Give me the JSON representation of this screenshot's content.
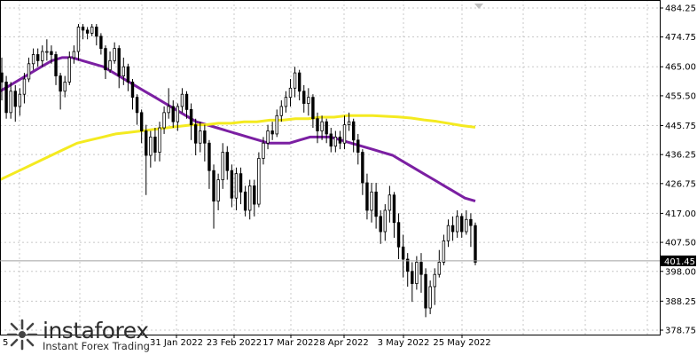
{
  "chart_data": {
    "type": "candlestick",
    "x_tick_labels": [
      "31 Jan 2022",
      "23 Feb 2022",
      "17 Mar 2022",
      "8 Apr 2022",
      "3 May 2022",
      "25 May 2022"
    ],
    "x_tick_label_partial_left": "5",
    "y_tick_labels": [
      "484.25",
      "474.75",
      "465.00",
      "455.50",
      "445.75",
      "436.25",
      "426.75",
      "417.00",
      "407.50",
      "398.00",
      "388.25",
      "378.75"
    ],
    "ylim": [
      378.75,
      484.25
    ],
    "current_price": 401.45,
    "current_price_label": "401.45",
    "candles": [
      [
        463,
        460,
        468,
        454
      ],
      [
        460,
        450,
        462,
        448
      ],
      [
        450,
        457,
        460,
        448
      ],
      [
        457,
        452,
        459,
        447
      ],
      [
        452,
        456,
        458,
        449
      ],
      [
        456,
        461,
        463,
        453
      ],
      [
        461,
        466,
        468,
        460
      ],
      [
        466,
        469,
        471,
        464
      ],
      [
        469,
        467,
        471,
        465
      ],
      [
        467,
        470,
        472,
        465
      ],
      [
        470,
        470,
        474,
        467
      ],
      [
        470,
        469,
        472,
        466
      ],
      [
        469,
        462,
        470,
        459
      ],
      [
        462,
        457,
        463,
        451
      ],
      [
        457,
        460,
        462,
        455
      ],
      [
        460,
        468,
        470,
        459
      ],
      [
        468,
        470,
        472,
        466
      ],
      [
        470,
        478,
        479,
        467
      ],
      [
        478,
        477,
        479,
        474
      ],
      [
        477,
        476,
        478,
        474
      ],
      [
        476,
        478,
        479,
        475
      ],
      [
        478,
        475,
        479,
        472
      ],
      [
        475,
        471,
        476,
        469
      ],
      [
        471,
        464,
        472,
        461
      ],
      [
        464,
        467,
        470,
        463
      ],
      [
        467,
        471,
        473,
        466
      ],
      [
        471,
        462,
        472,
        458
      ],
      [
        462,
        465,
        468,
        459
      ],
      [
        465,
        460,
        466,
        457
      ],
      [
        460,
        455,
        461,
        451
      ],
      [
        455,
        450,
        456,
        446
      ],
      [
        450,
        444,
        451,
        440
      ],
      [
        444,
        436,
        446,
        423
      ],
      [
        436,
        442,
        444,
        432
      ],
      [
        442,
        437,
        445,
        434
      ],
      [
        437,
        445,
        447,
        434
      ],
      [
        445,
        450,
        452,
        443
      ],
      [
        450,
        452,
        458,
        448
      ],
      [
        452,
        447,
        454,
        445
      ],
      [
        447,
        452,
        453,
        444
      ],
      [
        452,
        456,
        458,
        450
      ],
      [
        456,
        451,
        457,
        448
      ],
      [
        451,
        446,
        453,
        441
      ],
      [
        446,
        440,
        448,
        436
      ],
      [
        440,
        444,
        447,
        437
      ],
      [
        444,
        440,
        446,
        434
      ],
      [
        440,
        431,
        441,
        425
      ],
      [
        431,
        421,
        433,
        412
      ],
      [
        421,
        428,
        430,
        418
      ],
      [
        428,
        437,
        440,
        425
      ],
      [
        437,
        431,
        439,
        428
      ],
      [
        431,
        422,
        433,
        419
      ],
      [
        422,
        430,
        432,
        418
      ],
      [
        430,
        424,
        432,
        420
      ],
      [
        424,
        418,
        426,
        416
      ],
      [
        418,
        426,
        428,
        415
      ],
      [
        426,
        420,
        428,
        416
      ],
      [
        420,
        435,
        437,
        419
      ],
      [
        435,
        440,
        442,
        433
      ],
      [
        440,
        444,
        446,
        438
      ],
      [
        444,
        443,
        447,
        441
      ],
      [
        443,
        449,
        451,
        442
      ],
      [
        449,
        452,
        454,
        447
      ],
      [
        452,
        455,
        457,
        450
      ],
      [
        455,
        458,
        461,
        452
      ],
      [
        458,
        463,
        465,
        455
      ],
      [
        463,
        457,
        464,
        454
      ],
      [
        457,
        453,
        459,
        450
      ],
      [
        453,
        455,
        458,
        449
      ],
      [
        455,
        448,
        456,
        445
      ],
      [
        448,
        444,
        450,
        440
      ],
      [
        444,
        447,
        449,
        441
      ],
      [
        447,
        443,
        448,
        440
      ],
      [
        443,
        439,
        445,
        437
      ],
      [
        439,
        442,
        444,
        437
      ],
      [
        442,
        440,
        444,
        438
      ],
      [
        440,
        446,
        449,
        438
      ],
      [
        446,
        447,
        450,
        444
      ],
      [
        447,
        441,
        448,
        437
      ],
      [
        441,
        437,
        443,
        433
      ],
      [
        437,
        427,
        438,
        423
      ],
      [
        427,
        418,
        430,
        415
      ],
      [
        418,
        424,
        427,
        414
      ],
      [
        424,
        416,
        427,
        412
      ],
      [
        416,
        411,
        418,
        407
      ],
      [
        411,
        418,
        420,
        408
      ],
      [
        418,
        423,
        426,
        414
      ],
      [
        423,
        414,
        424,
        409
      ],
      [
        414,
        406,
        417,
        402
      ],
      [
        406,
        402,
        410,
        396
      ],
      [
        402,
        398,
        404,
        393
      ],
      [
        398,
        394,
        401,
        388
      ],
      [
        394,
        401,
        403,
        392
      ],
      [
        401,
        397,
        404,
        391
      ],
      [
        397,
        386,
        399,
        383
      ],
      [
        386,
        393,
        395,
        384
      ],
      [
        393,
        397,
        399,
        387
      ],
      [
        397,
        401,
        405,
        396
      ],
      [
        401,
        408,
        410,
        400
      ],
      [
        408,
        413,
        415,
        406
      ],
      [
        413,
        411,
        416,
        408
      ],
      [
        411,
        416,
        418,
        409
      ],
      [
        416,
        411,
        417,
        409
      ],
      [
        411,
        415,
        418,
        410
      ],
      [
        415,
        413,
        417,
        406
      ],
      [
        413,
        401,
        414,
        400
      ]
    ],
    "series": [
      {
        "color": "#7b1fa2",
        "values": [
          457,
          459,
          461,
          463,
          465,
          467,
          468,
          468,
          467,
          466,
          465,
          463,
          461,
          459,
          457,
          455,
          453,
          451,
          449,
          447,
          446,
          445,
          444,
          443,
          442,
          441,
          440,
          440,
          440,
          441,
          442,
          442,
          442,
          441,
          440,
          439,
          438,
          437,
          436,
          434,
          432,
          430,
          428,
          426,
          424,
          422,
          421
        ]
      },
      {
        "color": "#f4ea20",
        "values": [
          428,
          430,
          432,
          434,
          436,
          438,
          440,
          441,
          442,
          443,
          443.5,
          444,
          444.5,
          445,
          445.5,
          446,
          446,
          446.5,
          446.5,
          447,
          447,
          447.5,
          447.5,
          448,
          448,
          448.5,
          448.5,
          449,
          449,
          449,
          448.8,
          448.6,
          448.2,
          447.6,
          447.1,
          446.4,
          445.7,
          445.2
        ]
      }
    ],
    "grid": "dashed",
    "watermark": {
      "main": "instaforex",
      "sub": "Instant Forex Trading"
    }
  },
  "colors": {
    "bull": "#ffffff",
    "bear": "#000000",
    "grid": "#c8c8c8",
    "axis": "#000000",
    "ma_fast": "#7b1fa2",
    "ma_slow": "#f4ea20",
    "logo_red": "#e53935",
    "logo_blue": "#1e88e5"
  }
}
